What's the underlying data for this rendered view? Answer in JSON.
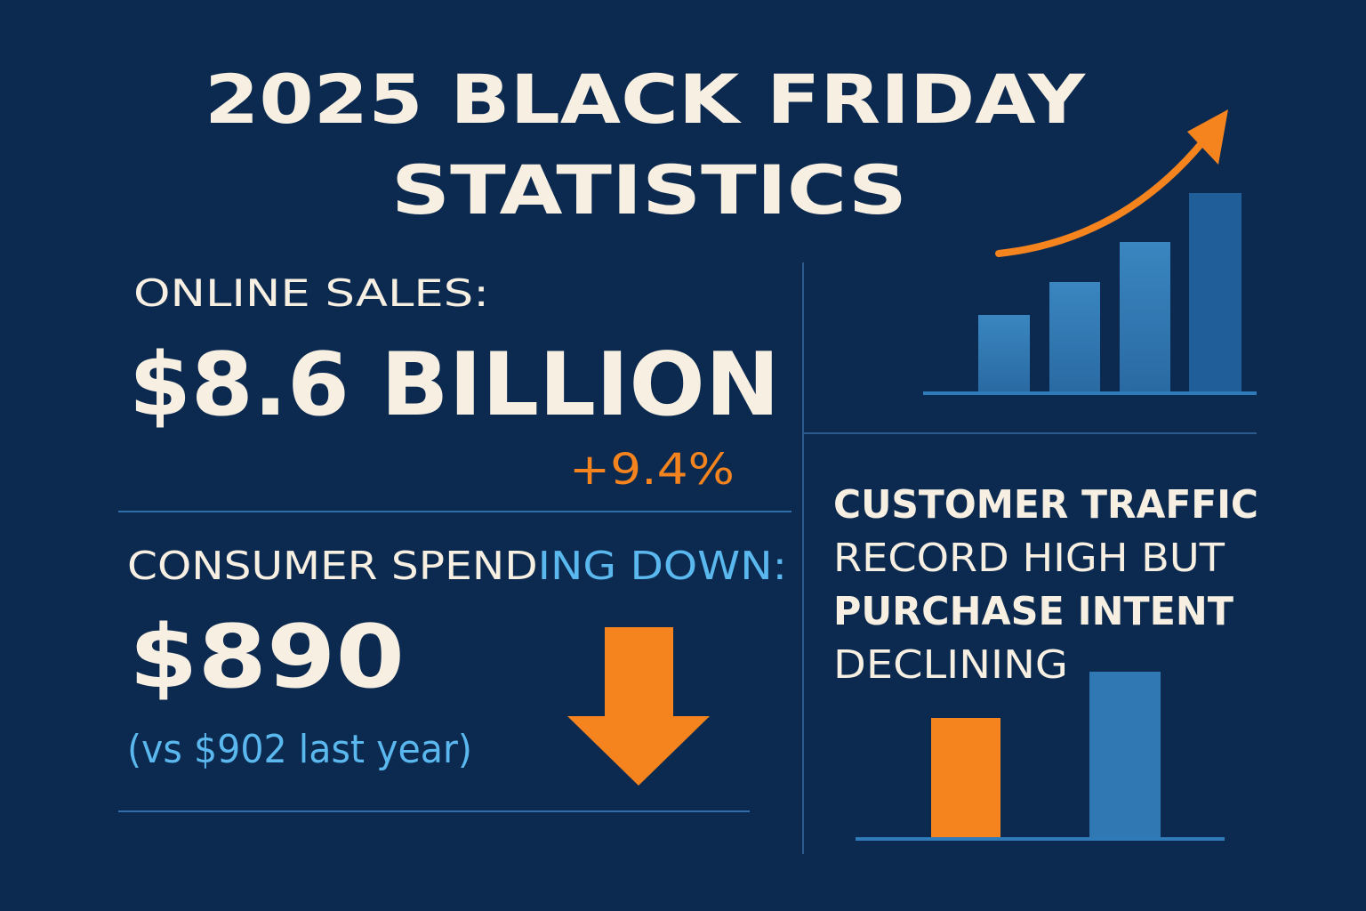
{
  "header": {
    "title_lines": [
      "2025 BLACK FRIDAY",
      "STATISTICS"
    ]
  },
  "online_sales": {
    "label": "ONLINE SALES:",
    "value": "$8.6 BILLION",
    "change": "+9.4%"
  },
  "consumer_spending": {
    "label_parts": [
      "CONSUMER SPEND",
      "ING DOWN:"
    ],
    "value": "$890",
    "comparison": "(vs $902 last year)"
  },
  "customer_traffic": {
    "lines": [
      "CUSTOMER TRAFFIC",
      "RECORD HIGH BUT",
      "PURCHASE INTENT",
      "DECLINING"
    ]
  }
}
